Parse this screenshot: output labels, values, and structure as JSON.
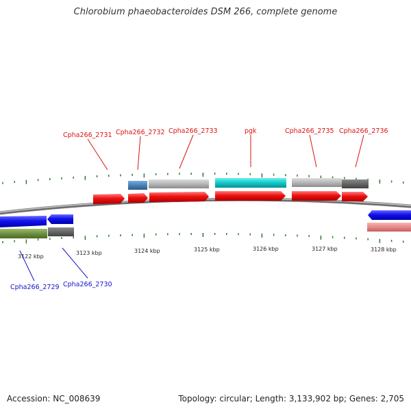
{
  "title": "Chlorobium phaeobacteroides DSM 266, complete genome",
  "footer": {
    "accession": "Accession: NC_008639",
    "summary": "Topology: circular; Length: 3,133,902 bp; Genes: 2,705"
  },
  "gene_labels_top": [
    "Cpha266_2731",
    "Cpha266_2732",
    "Cpha266_2733",
    "pgk",
    "Cpha266_2735",
    "Cpha266_2736"
  ],
  "gene_labels_bottom": [
    "Cpha266_2729",
    "Cpha266_2730"
  ],
  "scale_labels": [
    "3122 kbp",
    "3123 kbp",
    "3124 kbp",
    "3125 kbp",
    "3126 kbp",
    "3127 kbp",
    "3128 kbp"
  ],
  "colors": {
    "forward_cds": "#ee1111",
    "reverse_cds": "#1111ee",
    "label_forward": "#dd1111",
    "label_reverse": "#1111cc",
    "tick": "#2a7a2a",
    "backbone": "#888888"
  }
}
